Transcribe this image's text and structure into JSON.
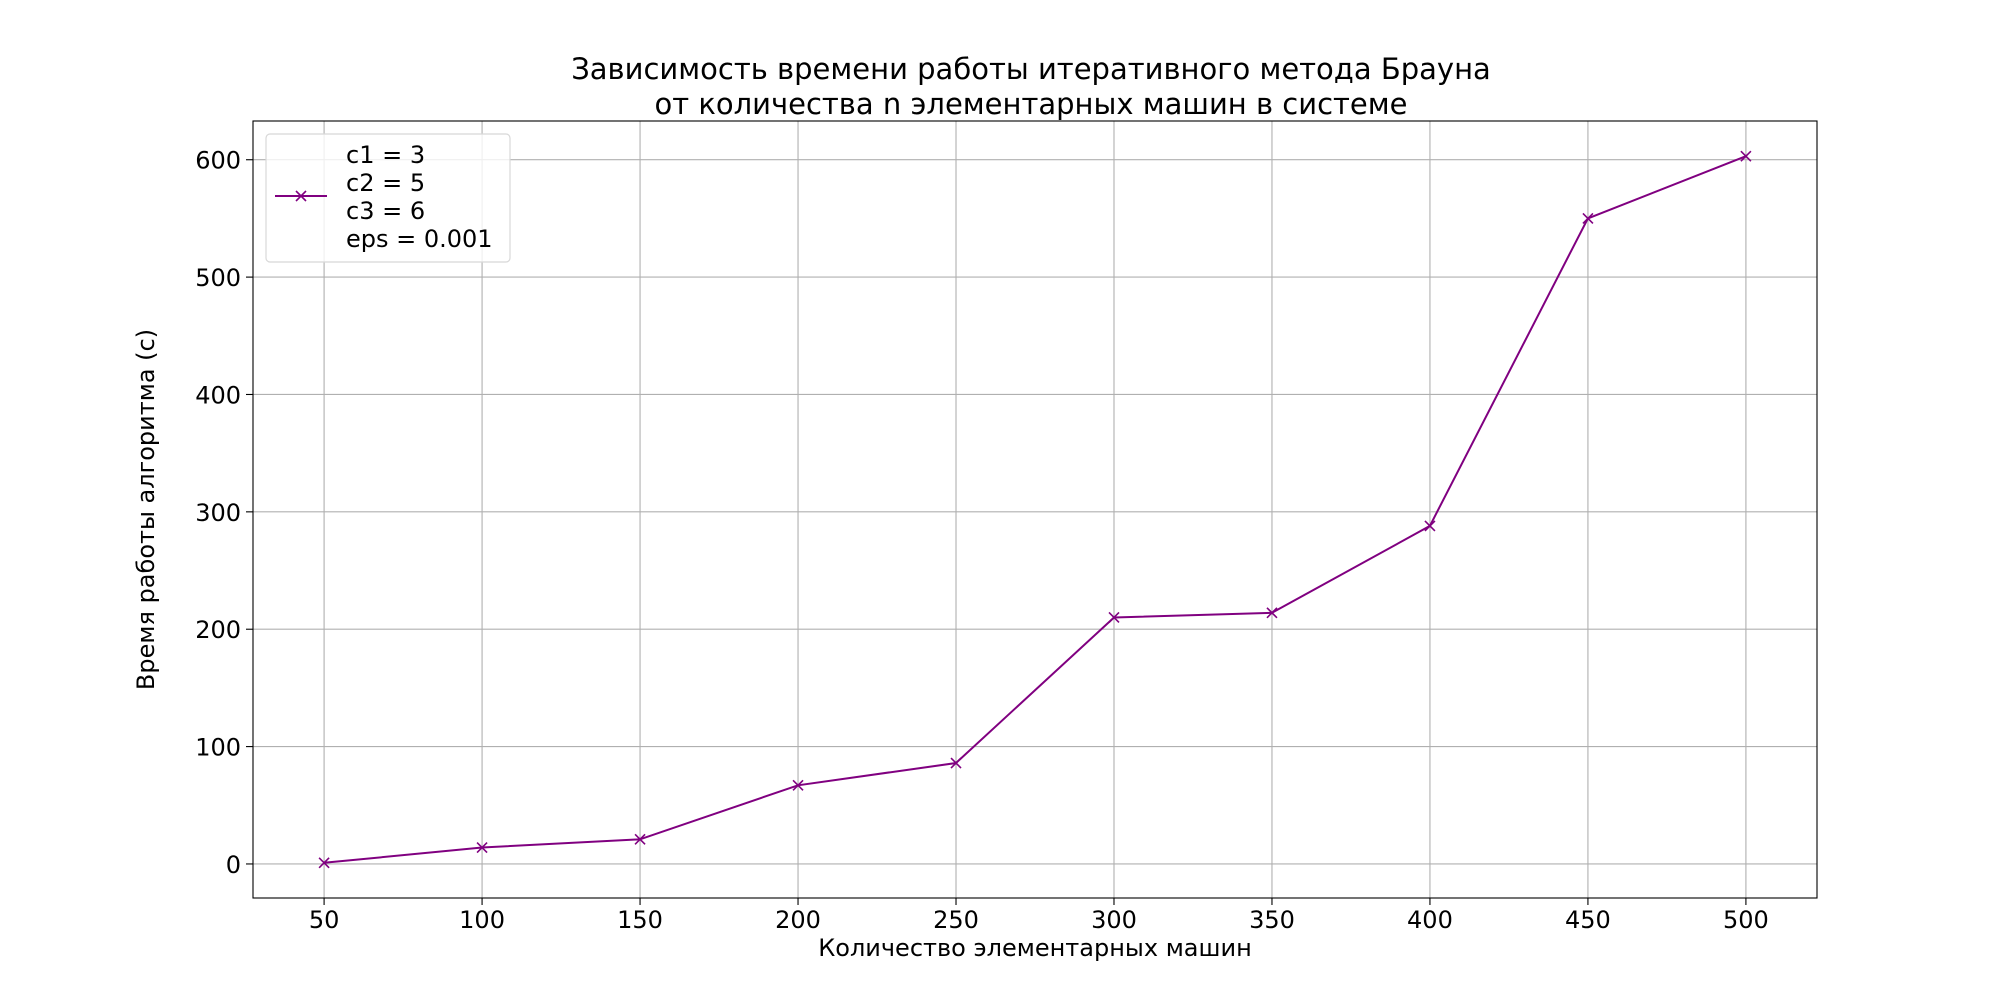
{
  "chart_data": {
    "type": "line",
    "title": "Зависимость времени работы итеративного метода Брауна\nот количества n элементарных машин в системе",
    "xlabel": "Количество элементарных машин",
    "ylabel": "Время работы алгоритма (с)",
    "x": [
      50,
      100,
      150,
      200,
      250,
      300,
      350,
      400,
      450,
      500
    ],
    "xlim": [
      27.5,
      522.5
    ],
    "ylim": [
      -29,
      633
    ],
    "xticks": [
      50,
      100,
      150,
      200,
      250,
      300,
      350,
      400,
      450,
      500
    ],
    "yticks": [
      0,
      100,
      200,
      300,
      400,
      500,
      600
    ],
    "grid": true,
    "legend_position": "top-left",
    "series": [
      {
        "name": "c1 = 3\nc2 = 5\nc3 = 6\neps = 0.001",
        "values": [
          1,
          14,
          21,
          67,
          86,
          210,
          214,
          288,
          550,
          603
        ],
        "color": "#800080",
        "marker": "x"
      }
    ]
  }
}
